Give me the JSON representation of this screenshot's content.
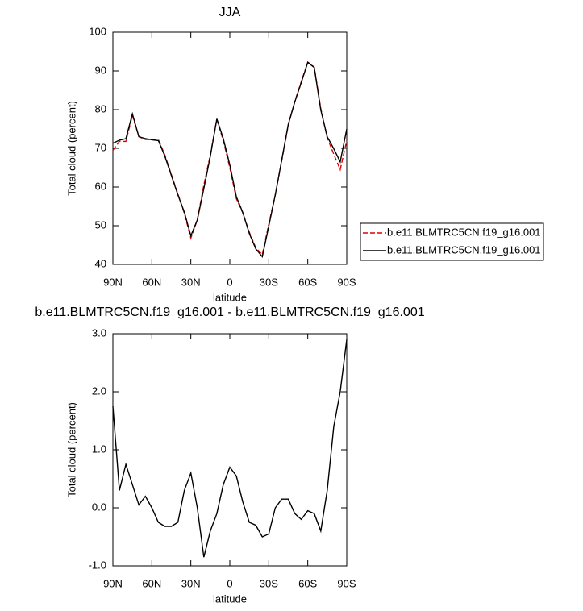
{
  "chart_data": [
    {
      "type": "line",
      "title": "JJA",
      "xlabel": "latitude",
      "ylabel": "Total cloud (percent)",
      "x": [
        90,
        85,
        80,
        75,
        70,
        65,
        60,
        55,
        50,
        45,
        40,
        35,
        30,
        25,
        20,
        15,
        10,
        5,
        0,
        -5,
        -10,
        -15,
        -20,
        -25,
        -30,
        -35,
        -40,
        -45,
        -50,
        -55,
        -60,
        -65,
        -70,
        -75,
        -80,
        -85,
        -90
      ],
      "xlim": [
        90,
        -90
      ],
      "xticks": [
        {
          "value": 90,
          "label": "90N"
        },
        {
          "value": 60,
          "label": "60N"
        },
        {
          "value": 30,
          "label": "30N"
        },
        0,
        {
          "value": -30,
          "label": "30S"
        },
        {
          "value": -60,
          "label": "60S"
        },
        {
          "value": -90,
          "label": "90S"
        }
      ],
      "ylim": [
        40,
        100
      ],
      "yticks": [
        40,
        50,
        60,
        70,
        80,
        90,
        100
      ],
      "legend": "right",
      "series": [
        {
          "name": "b.e11.BLMTRC5CN.f19_g16.001",
          "color": "#e00000",
          "linestyle": "dashed",
          "values": [
            69.5,
            71.8,
            71.8,
            78.5,
            73.0,
            72.3,
            72.2,
            72.3,
            68.3,
            63.2,
            58.2,
            53.2,
            46.8,
            51.5,
            60.5,
            68.3,
            77.5,
            72.0,
            65.0,
            57.0,
            53.3,
            48.3,
            44.3,
            42.5,
            50.4,
            58.0,
            66.8,
            76.0,
            82.1,
            87.2,
            92.3,
            91.0,
            80.3,
            72.7,
            68.5,
            64.5,
            72.0
          ]
        },
        {
          "name": "b.e11.BLMTRC5CN.f19_g16.001",
          "color": "#000000",
          "linestyle": "solid",
          "values": [
            71.3,
            72.1,
            72.5,
            78.9,
            73.0,
            72.5,
            72.2,
            72.0,
            68.0,
            63.0,
            58.0,
            53.5,
            47.4,
            51.5,
            59.6,
            67.9,
            77.6,
            72.5,
            65.7,
            57.5,
            53.4,
            48.0,
            44.0,
            42.0,
            49.9,
            58.0,
            67.0,
            76.2,
            82.0,
            87.0,
            92.2,
            90.9,
            79.9,
            73.0,
            69.9,
            66.5,
            75.0
          ]
        }
      ]
    },
    {
      "type": "line",
      "title": "b.e11.BLMTRC5CN.f19_g16.001 - b.e11.BLMTRC5CN.f19_g16.001",
      "xlabel": "latitude",
      "ylabel": "Total cloud (percent)",
      "x": [
        90,
        85,
        80,
        75,
        70,
        65,
        60,
        55,
        50,
        45,
        40,
        35,
        30,
        25,
        20,
        15,
        10,
        5,
        0,
        -5,
        -10,
        -15,
        -20,
        -25,
        -30,
        -35,
        -40,
        -45,
        -50,
        -55,
        -60,
        -65,
        -70,
        -75,
        -80,
        -85,
        -90
      ],
      "xlim": [
        90,
        -90
      ],
      "xticks": [
        {
          "value": 90,
          "label": "90N"
        },
        {
          "value": 60,
          "label": "60N"
        },
        {
          "value": 30,
          "label": "30N"
        },
        0,
        {
          "value": -30,
          "label": "30S"
        },
        {
          "value": -60,
          "label": "60S"
        },
        {
          "value": -90,
          "label": "90S"
        }
      ],
      "ylim": [
        -1,
        3
      ],
      "yticks": [
        {
          "value": -1,
          "label": "-1.0"
        },
        {
          "value": 0,
          "label": "0.0"
        },
        {
          "value": 1,
          "label": "1.0"
        },
        {
          "value": 2,
          "label": "2.0"
        },
        {
          "value": 3,
          "label": "3.0"
        }
      ],
      "series": [
        {
          "color": "#000000",
          "linestyle": "solid",
          "values": [
            1.75,
            0.3,
            0.75,
            0.4,
            0.05,
            0.2,
            0.0,
            -0.25,
            -0.32,
            -0.32,
            -0.25,
            0.3,
            0.6,
            0.0,
            -0.85,
            -0.4,
            -0.1,
            0.4,
            0.7,
            0.55,
            0.1,
            -0.25,
            -0.3,
            -0.5,
            -0.45,
            0.0,
            0.15,
            0.15,
            -0.1,
            -0.2,
            -0.05,
            -0.1,
            -0.4,
            0.3,
            1.4,
            2.0,
            2.9
          ]
        }
      ]
    }
  ]
}
